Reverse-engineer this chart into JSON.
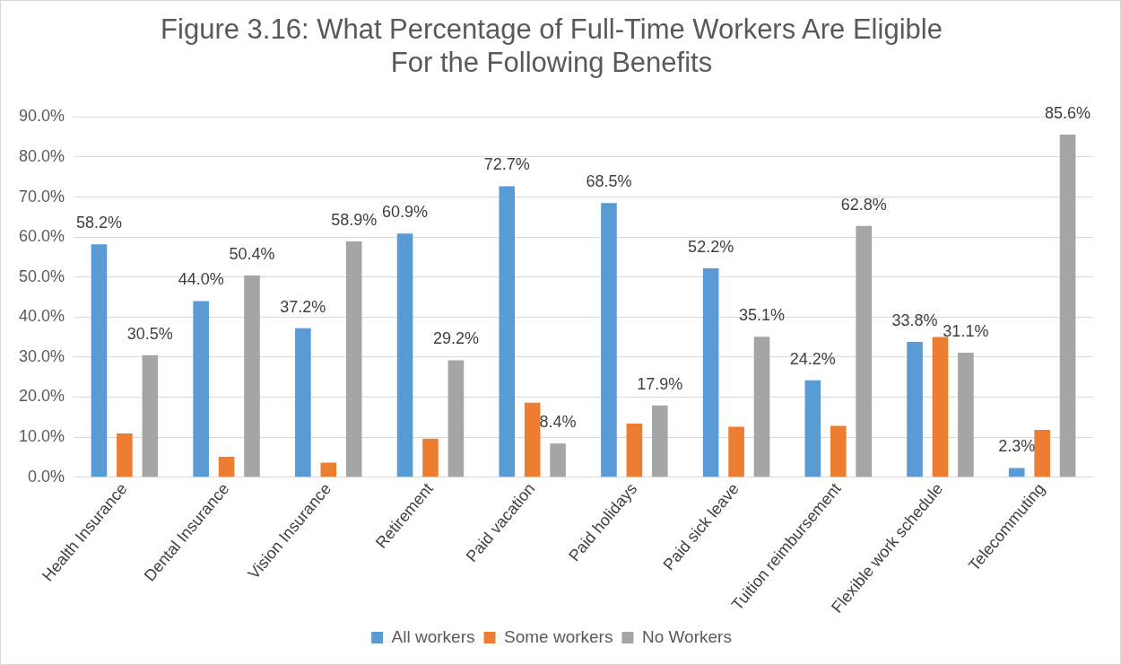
{
  "chart_data": {
    "type": "bar",
    "title": "Figure 3.16: What Percentage of Full-Time Workers Are Eligible For the Following Benefits",
    "categories": [
      "Health Insurance",
      "Dental Insurance",
      "Vision Insurance",
      "Retirement",
      "Paid vacation",
      "Paid holidays",
      "Paid sick leave",
      "Tuition reimbursement",
      "Flexible work schedule",
      "Telecommuting"
    ],
    "series": [
      {
        "name": "All workers",
        "color": "#5b9bd5",
        "values": [
          58.2,
          44.0,
          37.2,
          60.9,
          72.7,
          68.5,
          52.2,
          24.2,
          33.8,
          2.3
        ],
        "value_labels": [
          "58.2%",
          "44.0%",
          "37.2%",
          "60.9%",
          "72.7%",
          "68.5%",
          "52.2%",
          "24.2%",
          "33.8%",
          "2.3%"
        ]
      },
      {
        "name": "Some workers",
        "color": "#ed7d31",
        "values": [
          10.9,
          5.1,
          3.6,
          9.6,
          18.6,
          13.4,
          12.6,
          12.8,
          35.0,
          11.8
        ]
      },
      {
        "name": "No Workers",
        "color": "#a5a5a5",
        "values": [
          30.5,
          50.4,
          58.9,
          29.2,
          8.4,
          17.9,
          35.1,
          62.8,
          31.1,
          85.6
        ],
        "value_labels": [
          "30.5%",
          "50.4%",
          "58.9%",
          "29.2%",
          "8.4%",
          "17.9%",
          "35.1%",
          "62.8%",
          "31.1%",
          "85.6%"
        ]
      }
    ],
    "ylim": [
      0,
      90
    ],
    "yticks": [
      {
        "value": 0,
        "label": "0.0%"
      },
      {
        "value": 10,
        "label": "10.0%"
      },
      {
        "value": 20,
        "label": "20.0%"
      },
      {
        "value": 30,
        "label": "30.0%"
      },
      {
        "value": 40,
        "label": "40.0%"
      },
      {
        "value": 50,
        "label": "50.0%"
      },
      {
        "value": 60,
        "label": "60.0%"
      },
      {
        "value": 70,
        "label": "70.0%"
      },
      {
        "value": 80,
        "label": "80.0%"
      },
      {
        "value": 90,
        "label": "90.0%"
      }
    ],
    "grid": "y",
    "legend": "bottom"
  }
}
